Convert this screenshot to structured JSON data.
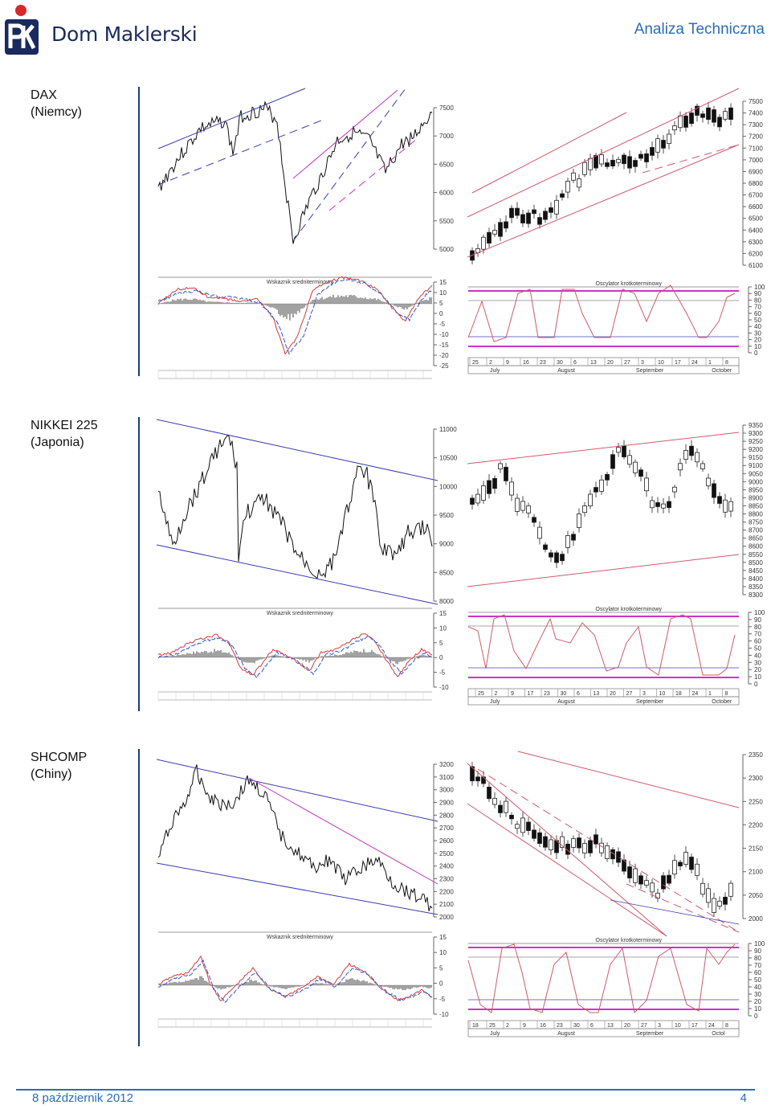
{
  "header": {
    "brand": "Dom Maklerski",
    "section_title": "Analiza Techniczna",
    "logo_text": "PKO"
  },
  "footer": {
    "date": "8 październik 2012",
    "page": "4"
  },
  "colors": {
    "brand_blue": "#2d6cb3",
    "trend_blue": "#3b3bb0",
    "trend_magenta": "#c033c0",
    "trend_pink": "#d05a6a",
    "macd_red": "#d43a3a",
    "macd_blue": "#3355cc",
    "osc_magenta": "#cc33cc"
  },
  "charts": [
    {
      "id": "dax",
      "label_line1": "DAX",
      "label_line2": "(Niemcy)",
      "long": {
        "price_ticks": [
          "7500",
          "7000",
          "6500",
          "6000",
          "5500",
          "5000"
        ],
        "indicator_title": "Wskaznik sredniterminowy",
        "indicator_ticks": [
          "15",
          "10",
          "5",
          "0",
          "-5",
          "-10",
          "-15",
          "-20",
          "-25"
        ]
      },
      "short": {
        "price_ticks": [
          "7500",
          "7400",
          "7300",
          "7200",
          "7100",
          "7000",
          "6900",
          "6800",
          "6700",
          "6600",
          "6500",
          "6400",
          "6300",
          "6200",
          "6100"
        ],
        "oscillator_title": "Oscylator krotkoterminowy",
        "oscillator_ticks": [
          "100",
          "90",
          "80",
          "70",
          "60",
          "50",
          "40",
          "30",
          "20",
          "10",
          "0"
        ],
        "day_ticks": [
          "25",
          "2",
          "9",
          "16",
          "23",
          "30",
          "6",
          "13",
          "20",
          "27",
          "3",
          "10",
          "17",
          "24",
          "1",
          "8"
        ],
        "month_labels": [
          "July",
          "August",
          "September",
          "October"
        ]
      }
    },
    {
      "id": "nikkei",
      "label_line1": "NIKKEI 225",
      "label_line2": "(Japonia)",
      "long": {
        "price_ticks": [
          "11000",
          "10500",
          "10000",
          "9500",
          "9000",
          "8500",
          "8000"
        ],
        "indicator_title": "Wskaznik sredniterminowy",
        "indicator_ticks": [
          "15",
          "10",
          "5",
          "0",
          "-5",
          "-10"
        ]
      },
      "short": {
        "price_ticks": [
          "9350",
          "9300",
          "9250",
          "9200",
          "9150",
          "9100",
          "9050",
          "9000",
          "8950",
          "8900",
          "8850",
          "8800",
          "8750",
          "8700",
          "8650",
          "8600",
          "8550",
          "8500",
          "8450",
          "8400",
          "8350",
          "8300"
        ],
        "oscillator_title": "Oscylator krotkoterminowy",
        "oscillator_ticks": [
          "100",
          "90",
          "80",
          "70",
          "60",
          "50",
          "40",
          "30",
          "20",
          "10",
          "0"
        ],
        "day_ticks": [
          "25",
          "2",
          "9",
          "17",
          "23",
          "30",
          "6",
          "13",
          "20",
          "27",
          "3",
          "10",
          "18",
          "24",
          "1",
          "8"
        ],
        "month_labels": [
          "July",
          "August",
          "September",
          "October"
        ]
      }
    },
    {
      "id": "shcomp",
      "label_line1": "SHCOMP",
      "label_line2": "(Chiny)",
      "long": {
        "price_ticks": [
          "3200",
          "3100",
          "3000",
          "2900",
          "2800",
          "2700",
          "2600",
          "2500",
          "2400",
          "2300",
          "2200",
          "2100",
          "2000"
        ],
        "indicator_title": "Wskaznik sredniterminowy",
        "indicator_ticks": [
          "15",
          "10",
          "5",
          "0",
          "-5",
          "-10"
        ]
      },
      "short": {
        "price_ticks": [
          "2350",
          "2300",
          "2250",
          "2200",
          "2150",
          "2100",
          "2050",
          "2000"
        ],
        "oscillator_title": "Oscylator krotkoterminowy",
        "oscillator_ticks": [
          "100",
          "90",
          "80",
          "70",
          "60",
          "50",
          "40",
          "30",
          "20",
          "10",
          "0"
        ],
        "day_ticks": [
          "18",
          "25",
          "2",
          "9",
          "16",
          "23",
          "30",
          "6",
          "13",
          "20",
          "27",
          "3",
          "10",
          "17",
          "24",
          "8"
        ],
        "month_labels": [
          "July",
          "August",
          "September",
          "Octol"
        ]
      }
    }
  ]
}
